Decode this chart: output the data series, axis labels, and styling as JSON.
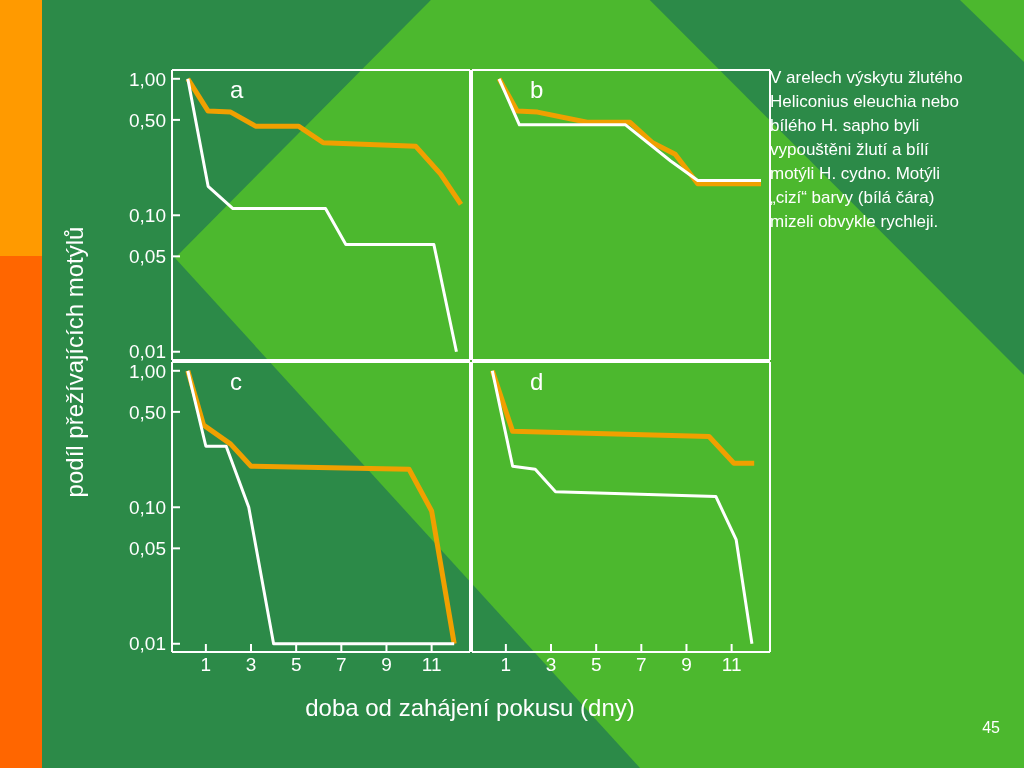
{
  "chart_data": [
    {
      "type": "line",
      "title": "a",
      "ylabel": "podíl přežívajících motýlů",
      "log": "y",
      "xlim": [
        -0.5,
        12.7
      ],
      "ylim": [
        0.0087,
        1.16
      ],
      "xticks": [
        1,
        3,
        5,
        7,
        9,
        11
      ],
      "yticks": [
        {
          "value": 0.01,
          "label": "0,01"
        },
        {
          "value": 0.05,
          "label": "0,05"
        },
        {
          "value": 0.1,
          "label": "0,10"
        },
        {
          "value": 0.5,
          "label": "0,50"
        },
        {
          "value": 1,
          "label": "1,00"
        }
      ],
      "tick_labels": "y",
      "legend": false,
      "marker": "none",
      "line_style": "solid",
      "series": [
        {
          "color": "#f0a000",
          "x": [
            0.2,
            1.1,
            2.1,
            3.2,
            5.1,
            6.2,
            10.3,
            11.4,
            12.3
          ],
          "values": [
            1.0,
            0.58,
            0.57,
            0.45,
            0.45,
            0.34,
            0.32,
            0.2,
            0.12
          ]
        },
        {
          "color": "#ffffff",
          "x": [
            0.2,
            1.1,
            2.2,
            6.3,
            7.2,
            11.1,
            12.1
          ],
          "values": [
            1.0,
            0.163,
            0.112,
            0.112,
            0.061,
            0.061,
            0.01
          ]
        }
      ]
    },
    {
      "type": "line",
      "title": "b",
      "annotations": [
        "V arelech výskytu žlutého Heliconius eleuchia nebo bílého H. sapho byli vypouštěni žlutí a bílí motýli H. cydno. Motýli „cizí“ barvy (bílá čára) mizeli obvykle rychleji."
      ],
      "log": "y",
      "xlim": [
        -0.5,
        12.7
      ],
      "ylim": [
        0.0087,
        1.16
      ],
      "xticks": [
        1,
        3,
        5,
        7,
        9,
        11
      ],
      "tick_labels": false,
      "legend": false,
      "marker": "none",
      "line_style": "solid",
      "series": [
        {
          "color": "#f0a000",
          "x": [
            0.7,
            1.5,
            2.4,
            4.6,
            6.5,
            7.5,
            8.5,
            9.5,
            12.3
          ],
          "values": [
            1.0,
            0.58,
            0.57,
            0.48,
            0.48,
            0.34,
            0.28,
            0.17,
            0.17
          ]
        },
        {
          "color": "#ffffff",
          "x": [
            0.7,
            1.6,
            6.3,
            8.3,
            9.5,
            12.3
          ],
          "values": [
            1.0,
            0.46,
            0.46,
            0.25,
            0.18,
            0.18
          ]
        }
      ]
    },
    {
      "type": "line",
      "title": "c",
      "xlabel": "doba od zahájení pokusu (dny)",
      "log": "y",
      "xlim": [
        -0.5,
        12.7
      ],
      "ylim": [
        0.0087,
        1.16
      ],
      "xticks": [
        1,
        3,
        5,
        7,
        9,
        11
      ],
      "yticks": [
        {
          "value": 0.01,
          "label": "0,01"
        },
        {
          "value": 0.05,
          "label": "0,05"
        },
        {
          "value": 0.1,
          "label": "0,10"
        },
        {
          "value": 0.5,
          "label": "0,50"
        },
        {
          "value": 1,
          "label": "1,00"
        }
      ],
      "legend": false,
      "marker": "none",
      "line_style": "solid",
      "series": [
        {
          "color": "#f0a000",
          "x": [
            0.2,
            0.9,
            2.1,
            3.0,
            10.0,
            11.0,
            12.0
          ],
          "values": [
            1.0,
            0.4,
            0.29,
            0.2,
            0.19,
            0.094,
            0.01
          ]
        },
        {
          "color": "#ffffff",
          "x": [
            0.2,
            1.0,
            1.9,
            2.9,
            4.0,
            12.0
          ],
          "values": [
            1.0,
            0.28,
            0.28,
            0.1,
            0.01,
            0.01
          ]
        }
      ]
    },
    {
      "type": "line",
      "title": "d",
      "annotations": [
        "45"
      ],
      "log": "y",
      "xlim": [
        -0.5,
        12.7
      ],
      "ylim": [
        0.0087,
        1.16
      ],
      "xticks": [
        1,
        3,
        5,
        7,
        9,
        11
      ],
      "tick_labels": "x",
      "legend": false,
      "marker": "none",
      "line_style": "solid",
      "series": [
        {
          "color": "#f0a000",
          "x": [
            0.4,
            1.3,
            10.0,
            11.1,
            12.0
          ],
          "values": [
            1.0,
            0.36,
            0.33,
            0.21,
            0.21
          ]
        },
        {
          "color": "#ffffff",
          "x": [
            0.4,
            1.3,
            2.3,
            3.2,
            10.3,
            11.2,
            11.9
          ],
          "values": [
            1.0,
            0.2,
            0.19,
            0.13,
            0.12,
            0.058,
            0.01
          ]
        }
      ]
    }
  ]
}
